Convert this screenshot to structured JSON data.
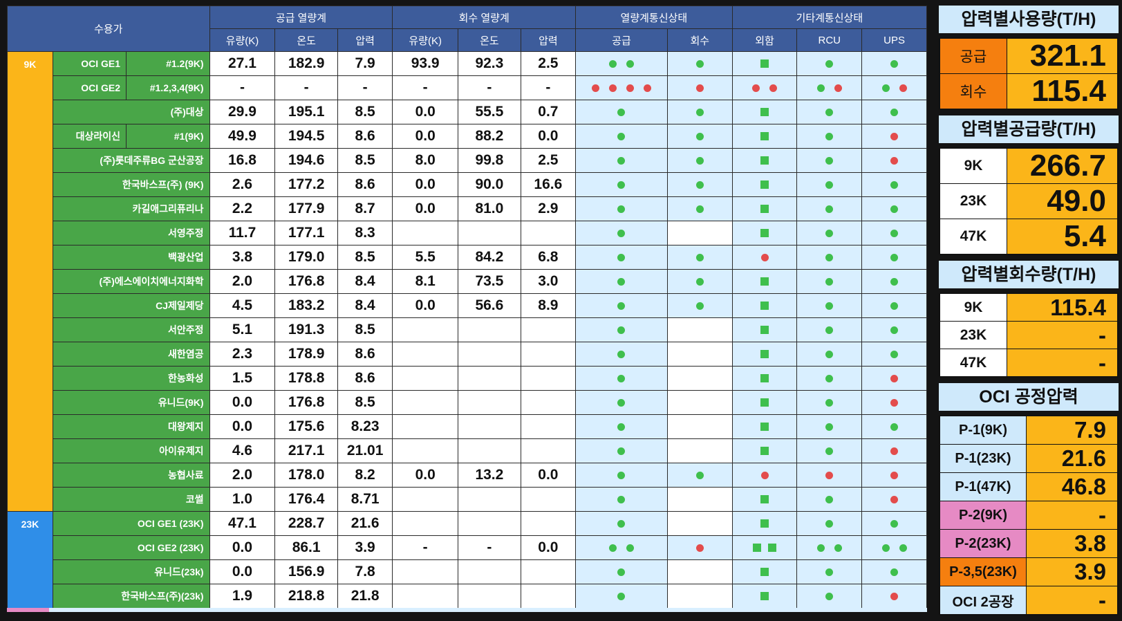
{
  "header": {
    "customer": "수용가",
    "supply_meter": "공급 열량계",
    "return_meter": "회수 열량계",
    "meter_comm": "열량계통신상태",
    "other_comm": "기타계통신상태",
    "flow": "유량(K)",
    "temp": "온도",
    "press": "압력",
    "supply": "공급",
    "return": "회수",
    "outside": "외함",
    "rcu": "RCU",
    "ups": "UPS"
  },
  "groups": [
    {
      "label": "9K",
      "rows": [
        {
          "name": "OCI GE1",
          "sub": "#1.2(9K)",
          "s_flow": "27.1",
          "s_temp": "182.9",
          "s_press": "7.9",
          "r_flow": "93.9",
          "r_temp": "92.3",
          "r_press": "2.5",
          "st_sup": "gg",
          "st_ret": "g",
          "st_out": "G",
          "st_rcu": "g",
          "st_ups": "g"
        },
        {
          "name": "OCI GE2",
          "sub": "#1.2,3,4(9K)",
          "s_flow": "-",
          "s_temp": "-",
          "s_press": "-",
          "r_flow": "-",
          "r_temp": "-",
          "r_press": "-",
          "st_sup": "rrrr",
          "st_ret": "r",
          "st_out": "rr",
          "st_rcu": "gr",
          "st_ups": "gr"
        },
        {
          "name": "(주)대상",
          "sub": "",
          "s_flow": "29.9",
          "s_temp": "195.1",
          "s_press": "8.5",
          "r_flow": "0.0",
          "r_temp": "55.5",
          "r_press": "0.7",
          "st_sup": "g",
          "st_ret": "g",
          "st_out": "G",
          "st_rcu": "g",
          "st_ups": "g"
        },
        {
          "name": "대상라이신",
          "sub": "#1(9K)",
          "s_flow": "49.9",
          "s_temp": "194.5",
          "s_press": "8.6",
          "r_flow": "0.0",
          "r_temp": "88.2",
          "r_press": "0.0",
          "st_sup": "g",
          "st_ret": "g",
          "st_out": "G",
          "st_rcu": "g",
          "st_ups": "r"
        },
        {
          "name": "(주)롯데주류BG 군산공장",
          "sub": "",
          "s_flow": "16.8",
          "s_temp": "194.6",
          "s_press": "8.5",
          "r_flow": "8.0",
          "r_temp": "99.8",
          "r_press": "2.5",
          "st_sup": "g",
          "st_ret": "g",
          "st_out": "G",
          "st_rcu": "g",
          "st_ups": "r"
        },
        {
          "name": "한국바스프(주) (9K)",
          "sub": "",
          "s_flow": "2.6",
          "s_temp": "177.2",
          "s_press": "8.6",
          "r_flow": "0.0",
          "r_temp": "90.0",
          "r_press": "16.6",
          "st_sup": "g",
          "st_ret": "g",
          "st_out": "G",
          "st_rcu": "g",
          "st_ups": "g"
        },
        {
          "name": "카길애그리퓨리나",
          "sub": "",
          "s_flow": "2.2",
          "s_temp": "177.9",
          "s_press": "8.7",
          "r_flow": "0.0",
          "r_temp": "81.0",
          "r_press": "2.9",
          "st_sup": "g",
          "st_ret": "g",
          "st_out": "G",
          "st_rcu": "g",
          "st_ups": "g"
        },
        {
          "name": "서영주정",
          "sub": "",
          "s_flow": "11.7",
          "s_temp": "177.1",
          "s_press": "8.3",
          "r_flow": "",
          "r_temp": "",
          "r_press": "",
          "st_sup": "g",
          "st_ret": "",
          "st_out": "G",
          "st_rcu": "g",
          "st_ups": "g"
        },
        {
          "name": "백광산업",
          "sub": "",
          "s_flow": "3.8",
          "s_temp": "179.0",
          "s_press": "8.5",
          "r_flow": "5.5",
          "r_temp": "84.2",
          "r_press": "6.8",
          "st_sup": "g",
          "st_ret": "g",
          "st_out": "r",
          "st_rcu": "g",
          "st_ups": "g"
        },
        {
          "name": "(주)에스에이치에너지화학",
          "sub": "",
          "s_flow": "2.0",
          "s_temp": "176.8",
          "s_press": "8.4",
          "r_flow": "8.1",
          "r_temp": "73.5",
          "r_press": "3.0",
          "st_sup": "g",
          "st_ret": "g",
          "st_out": "G",
          "st_rcu": "g",
          "st_ups": "g"
        },
        {
          "name": "CJ제일제당",
          "sub": "",
          "s_flow": "4.5",
          "s_temp": "183.2",
          "s_press": "8.4",
          "r_flow": "0.0",
          "r_temp": "56.6",
          "r_press": "8.9",
          "st_sup": "g",
          "st_ret": "g",
          "st_out": "G",
          "st_rcu": "g",
          "st_ups": "g"
        },
        {
          "name": "서안주정",
          "sub": "",
          "s_flow": "5.1",
          "s_temp": "191.3",
          "s_press": "8.5",
          "r_flow": "",
          "r_temp": "",
          "r_press": "",
          "st_sup": "g",
          "st_ret": "",
          "st_out": "G",
          "st_rcu": "g",
          "st_ups": "g"
        },
        {
          "name": "새한염공",
          "sub": "",
          "s_flow": "2.3",
          "s_temp": "178.9",
          "s_press": "8.6",
          "r_flow": "",
          "r_temp": "",
          "r_press": "",
          "st_sup": "g",
          "st_ret": "",
          "st_out": "G",
          "st_rcu": "g",
          "st_ups": "g"
        },
        {
          "name": "한농화성",
          "sub": "",
          "s_flow": "1.5",
          "s_temp": "178.8",
          "s_press": "8.6",
          "r_flow": "",
          "r_temp": "",
          "r_press": "",
          "st_sup": "g",
          "st_ret": "",
          "st_out": "G",
          "st_rcu": "g",
          "st_ups": "r"
        },
        {
          "name": "유니드(9K)",
          "sub": "",
          "s_flow": "0.0",
          "s_temp": "176.8",
          "s_press": "8.5",
          "r_flow": "",
          "r_temp": "",
          "r_press": "",
          "st_sup": "g",
          "st_ret": "",
          "st_out": "G",
          "st_rcu": "g",
          "st_ups": "r"
        },
        {
          "name": "대왕제지",
          "sub": "",
          "s_flow": "0.0",
          "s_temp": "175.6",
          "s_press": "8.23",
          "r_flow": "",
          "r_temp": "",
          "r_press": "",
          "st_sup": "g",
          "st_ret": "",
          "st_out": "G",
          "st_rcu": "g",
          "st_ups": "g"
        },
        {
          "name": "아이유제지",
          "sub": "",
          "s_flow": "4.6",
          "s_temp": "217.1",
          "s_press": "21.01",
          "r_flow": "",
          "r_temp": "",
          "r_press": "",
          "st_sup": "g",
          "st_ret": "",
          "st_out": "G",
          "st_rcu": "g",
          "st_ups": "r"
        },
        {
          "name": "농협사료",
          "sub": "",
          "s_flow": "2.0",
          "s_temp": "178.0",
          "s_press": "8.2",
          "r_flow": "0.0",
          "r_temp": "13.2",
          "r_press": "0.0",
          "st_sup": "g",
          "st_ret": "g",
          "st_out": "r",
          "st_rcu": "r",
          "st_ups": "r"
        },
        {
          "name": "코썰",
          "sub": "",
          "s_flow": "1.0",
          "s_temp": "176.4",
          "s_press": "8.71",
          "r_flow": "",
          "r_temp": "",
          "r_press": "",
          "st_sup": "g",
          "st_ret": "",
          "st_out": "G",
          "st_rcu": "g",
          "st_ups": "r"
        }
      ]
    },
    {
      "label": "23K",
      "rows": [
        {
          "name": "OCI GE1 (23K)",
          "sub": "",
          "s_flow": "47.1",
          "s_temp": "228.7",
          "s_press": "21.6",
          "r_flow": "",
          "r_temp": "",
          "r_press": "",
          "st_sup": "g",
          "st_ret": "",
          "st_out": "G",
          "st_rcu": "g",
          "st_ups": "g"
        },
        {
          "name": "OCI GE2 (23K)",
          "sub": "",
          "s_flow": "0.0",
          "s_temp": "86.1",
          "s_press": "3.9",
          "r_flow": "-",
          "r_temp": "-",
          "r_press": "0.0",
          "st_sup": "gg",
          "st_ret": "r",
          "st_out": "GG",
          "st_rcu": "gg",
          "st_ups": "gg"
        },
        {
          "name": "유니드(23k)",
          "sub": "",
          "s_flow": "0.0",
          "s_temp": "156.9",
          "s_press": "7.8",
          "r_flow": "",
          "r_temp": "",
          "r_press": "",
          "st_sup": "g",
          "st_ret": "",
          "st_out": "G",
          "st_rcu": "g",
          "st_ups": "g"
        },
        {
          "name": "한국바스프(주)(23k)",
          "sub": "",
          "s_flow": "1.9",
          "s_temp": "218.8",
          "s_press": "21.8",
          "r_flow": "",
          "r_temp": "",
          "r_press": "",
          "st_sup": "g",
          "st_ret": "",
          "st_out": "G",
          "st_rcu": "g",
          "st_ups": "r"
        }
      ]
    }
  ],
  "side": {
    "usage_title": "압력별사용량(T/H)",
    "usage": [
      {
        "label": "공급",
        "value": "321.1"
      },
      {
        "label": "회수",
        "value": "115.4"
      }
    ],
    "supply_title": "압력별공급량(T/H)",
    "supply": [
      {
        "label": "9K",
        "value": "266.7"
      },
      {
        "label": "23K",
        "value": "49.0"
      },
      {
        "label": "47K",
        "value": "5.4"
      }
    ],
    "return_title": "압력별회수량(T/H)",
    "return": [
      {
        "label": "9K",
        "value": "115.4"
      },
      {
        "label": "23K",
        "value": "-"
      },
      {
        "label": "47K",
        "value": "-"
      }
    ],
    "oci_title": "OCI 공정압력",
    "oci": [
      {
        "label": "P-1(9K)",
        "value": "7.9",
        "style": "pr"
      },
      {
        "label": "P-1(23K)",
        "value": "21.6",
        "style": "pr"
      },
      {
        "label": "P-1(47K)",
        "value": "46.8",
        "style": "pr"
      },
      {
        "label": "P-2(9K)",
        "value": "-",
        "style": "pink"
      },
      {
        "label": "P-2(23K)",
        "value": "3.8",
        "style": "pink"
      },
      {
        "label": "P-3,5(23K)",
        "value": "3.9",
        "style": "org"
      },
      {
        "label": "OCI 2공장",
        "value": "-",
        "style": "pr"
      }
    ]
  },
  "colors": {
    "header": "#3d5c9b",
    "group_9k": "#fbb519",
    "group_23k": "#2f8ee8",
    "name_cell": "#49a648",
    "status_bg": "#d9efff",
    "ok": "#3fbf4d",
    "fault": "#e34c4c",
    "accent": "#f57f0f"
  }
}
